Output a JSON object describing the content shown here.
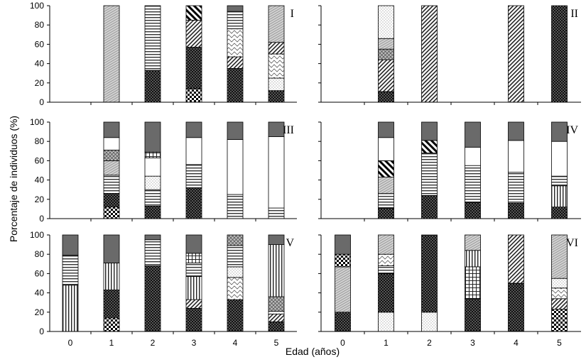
{
  "chart_data": {
    "type": "bar",
    "stacked": true,
    "xlabel": "Edad (años)",
    "ylabel": "Porcentaje de individuos (%)",
    "categories": [
      "0",
      "1",
      "2",
      "3",
      "4",
      "5"
    ],
    "y_ticks": [
      "0",
      "20",
      "40",
      "60",
      "80",
      "100"
    ],
    "ylim": [
      0,
      100
    ],
    "grid": false,
    "legend": "none",
    "panels": [
      {
        "label": "I",
        "bars": [
          [],
          [
            {
              "p": "lgray",
              "v": 100
            }
          ],
          [
            {
              "p": "dots",
              "v": 33
            },
            {
              "p": "hstripe",
              "v": 67
            }
          ],
          [
            {
              "p": "diamond",
              "v": 14
            },
            {
              "p": "dots",
              "v": 43
            },
            {
              "p": "fwd",
              "v": 28
            },
            {
              "p": "bk",
              "v": 15
            }
          ],
          [
            {
              "p": "dots",
              "v": 35
            },
            {
              "p": "fwd",
              "v": 12
            },
            {
              "p": "wave",
              "v": 29
            },
            {
              "p": "hstripe",
              "v": 18
            },
            {
              "p": "dark",
              "v": 6
            }
          ],
          [
            {
              "p": "dots",
              "v": 12
            },
            {
              "p": "light",
              "v": 13
            },
            {
              "p": "wave",
              "v": 25
            },
            {
              "p": "fwd",
              "v": 12
            },
            {
              "p": "lgray",
              "v": 38
            }
          ]
        ]
      },
      {
        "label": "II",
        "bars": [
          [],
          [
            {
              "p": "dots",
              "v": 11
            },
            {
              "p": "fwd",
              "v": 33
            },
            {
              "p": "cross",
              "v": 11
            },
            {
              "p": "lgray",
              "v": 11
            },
            {
              "p": "light",
              "v": 34
            }
          ],
          [
            {
              "p": "fwd",
              "v": 100
            }
          ],
          [],
          [
            {
              "p": "fwd",
              "v": 100
            }
          ],
          [
            {
              "p": "dots",
              "v": 100
            }
          ]
        ]
      },
      {
        "label": "III",
        "bars": [
          [],
          [
            {
              "p": "diamond",
              "v": 12
            },
            {
              "p": "dots",
              "v": 14
            },
            {
              "p": "hstripe",
              "v": 19
            },
            {
              "p": "lgray",
              "v": 15
            },
            {
              "p": "cross",
              "v": 11
            },
            {
              "p": "white",
              "v": 13
            },
            {
              "p": "dark",
              "v": 16
            }
          ],
          [
            {
              "p": "dots",
              "v": 13
            },
            {
              "p": "hstripe",
              "v": 17
            },
            {
              "p": "light",
              "v": 14
            },
            {
              "p": "white",
              "v": 19
            },
            {
              "p": "grid",
              "v": 6
            },
            {
              "p": "dark",
              "v": 31
            }
          ],
          [
            {
              "p": "dots",
              "v": 32
            },
            {
              "p": "hstripe",
              "v": 24
            },
            {
              "p": "white",
              "v": 28
            },
            {
              "p": "dark",
              "v": 16
            }
          ],
          [
            {
              "p": "hstripe",
              "v": 25
            },
            {
              "p": "white",
              "v": 57
            },
            {
              "p": "dark",
              "v": 18
            }
          ],
          [
            {
              "p": "hstripe",
              "v": 11
            },
            {
              "p": "white",
              "v": 74
            },
            {
              "p": "dark",
              "v": 15
            }
          ]
        ]
      },
      {
        "label": "IV",
        "bars": [
          [],
          [
            {
              "p": "dots",
              "v": 11
            },
            {
              "p": "hstripe",
              "v": 15
            },
            {
              "p": "lgray",
              "v": 17
            },
            {
              "p": "bk",
              "v": 17
            },
            {
              "p": "white",
              "v": 24
            },
            {
              "p": "dark",
              "v": 16
            }
          ],
          [
            {
              "p": "dots",
              "v": 24
            },
            {
              "p": "hstripe",
              "v": 44
            },
            {
              "p": "bk",
              "v": 13
            },
            {
              "p": "dark",
              "v": 19
            }
          ],
          [
            {
              "p": "dots",
              "v": 17
            },
            {
              "p": "hstripe",
              "v": 38
            },
            {
              "p": "white",
              "v": 19
            },
            {
              "p": "dark",
              "v": 26
            }
          ],
          [
            {
              "p": "dots",
              "v": 16
            },
            {
              "p": "hstripe",
              "v": 32
            },
            {
              "p": "white",
              "v": 33
            },
            {
              "p": "dark",
              "v": 19
            }
          ],
          [
            {
              "p": "dots",
              "v": 12
            },
            {
              "p": "vstripe",
              "v": 22
            },
            {
              "p": "hstripe",
              "v": 10
            },
            {
              "p": "white",
              "v": 36
            },
            {
              "p": "dark",
              "v": 20
            }
          ]
        ]
      },
      {
        "label": "V",
        "bars": [
          [
            {
              "p": "vstripe",
              "v": 48
            },
            {
              "p": "hstripe",
              "v": 31
            },
            {
              "p": "dark",
              "v": 21
            }
          ],
          [
            {
              "p": "diamond",
              "v": 14
            },
            {
              "p": "dots",
              "v": 29
            },
            {
              "p": "vstripe",
              "v": 28
            },
            {
              "p": "dark",
              "v": 29
            }
          ],
          [
            {
              "p": "dots",
              "v": 68
            },
            {
              "p": "hstripe",
              "v": 27
            },
            {
              "p": "dark",
              "v": 5
            }
          ],
          [
            {
              "p": "dots",
              "v": 24
            },
            {
              "p": "fwd",
              "v": 9
            },
            {
              "p": "vstripe",
              "v": 24
            },
            {
              "p": "hstripe",
              "v": 14
            },
            {
              "p": "grid",
              "v": 10
            },
            {
              "p": "dark",
              "v": 19
            }
          ],
          [
            {
              "p": "dots",
              "v": 33
            },
            {
              "p": "wave",
              "v": 23
            },
            {
              "p": "light",
              "v": 11
            },
            {
              "p": "hstripe",
              "v": 22
            },
            {
              "p": "cross",
              "v": 11
            }
          ],
          [
            {
              "p": "dots",
              "v": 10
            },
            {
              "p": "fwd",
              "v": 8
            },
            {
              "p": "light",
              "v": 3
            },
            {
              "p": "cross",
              "v": 15
            },
            {
              "p": "vstripe",
              "v": 54
            },
            {
              "p": "dark",
              "v": 10
            }
          ]
        ]
      },
      {
        "label": "VI",
        "bars": [
          [
            {
              "p": "dots",
              "v": 20
            },
            {
              "p": "lgray",
              "v": 47
            },
            {
              "p": "diamond",
              "v": 13
            },
            {
              "p": "dark",
              "v": 20
            }
          ],
          [
            {
              "p": "light",
              "v": 20
            },
            {
              "p": "dots",
              "v": 40
            },
            {
              "p": "hstripe",
              "v": 8
            },
            {
              "p": "wave",
              "v": 12
            },
            {
              "p": "lgray",
              "v": 20
            }
          ],
          [
            {
              "p": "light",
              "v": 20
            },
            {
              "p": "dots",
              "v": 80
            }
          ],
          [
            {
              "p": "dots",
              "v": 34
            },
            {
              "p": "grid",
              "v": 33
            },
            {
              "p": "vstripe",
              "v": 17
            },
            {
              "p": "lgray",
              "v": 16
            }
          ],
          [
            {
              "p": "dots",
              "v": 50
            },
            {
              "p": "fwd",
              "v": 50
            }
          ],
          [
            {
              "p": "diamond",
              "v": 23
            },
            {
              "p": "fwd",
              "v": 11
            },
            {
              "p": "wave",
              "v": 11
            },
            {
              "p": "light",
              "v": 10
            },
            {
              "p": "lgray",
              "v": 45
            }
          ]
        ]
      }
    ]
  }
}
